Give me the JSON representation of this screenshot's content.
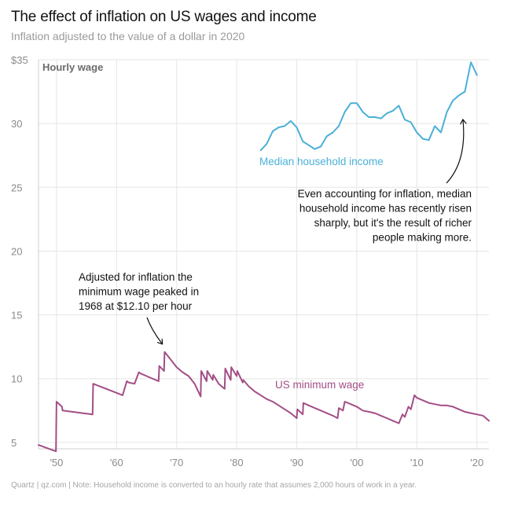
{
  "title": "The effect of inflation on US wages and income",
  "subtitle": "Inflation adjusted to the value of a dollar in 2020",
  "footer": "Quartz | qz.com | Note: Household income is converted to an hourly rate that assumes 2,000 hours of work in a year.",
  "colors": {
    "income": "#4ab0d8",
    "wage": "#a34e86",
    "grid": "#e6e6e6",
    "tick": "#8a8a8a"
  },
  "chart_data": {
    "type": "line",
    "ylabel": "Hourly wage",
    "ylim": [
      4.5,
      35
    ],
    "xlim": [
      1947,
      2022
    ],
    "y_ticks": [
      5,
      10,
      15,
      20,
      25,
      30,
      35
    ],
    "y_tick_labels": [
      "5",
      "10",
      "15",
      "20",
      "25",
      "30",
      "$35"
    ],
    "x_ticks": [
      1950,
      1960,
      1970,
      1980,
      1990,
      2000,
      2010,
      2020
    ],
    "x_tick_labels": [
      "'50",
      "'60",
      "'70",
      "'80",
      "'90",
      "'00",
      "'10",
      "'20"
    ],
    "series": [
      {
        "name": "Median household income",
        "label": "Median household income",
        "x": [
          1984,
          1985,
          1986,
          1987,
          1988,
          1989,
          1990,
          1991,
          1992,
          1993,
          1994,
          1995,
          1996,
          1997,
          1998,
          1999,
          2000,
          2001,
          2002,
          2003,
          2004,
          2005,
          2006,
          2007,
          2008,
          2009,
          2010,
          2011,
          2012,
          2013,
          2014,
          2015,
          2016,
          2017,
          2018,
          2019,
          2020
        ],
        "values": [
          27.9,
          28.4,
          29.4,
          29.7,
          29.8,
          30.2,
          29.7,
          28.6,
          28.3,
          28.0,
          28.2,
          29.0,
          29.3,
          29.8,
          30.9,
          31.6,
          31.6,
          30.9,
          30.5,
          30.5,
          30.4,
          30.8,
          31.0,
          31.4,
          30.3,
          30.1,
          29.3,
          28.8,
          28.7,
          29.8,
          29.3,
          30.9,
          31.8,
          32.2,
          32.5,
          34.8,
          33.8
        ]
      },
      {
        "name": "US minimum wage",
        "label": "US minimum wage",
        "x": [
          1947,
          1949.9,
          1950,
          1950.9,
          1951,
          1956,
          1956.1,
          1961,
          1961.7,
          1962,
          1963,
          1963.7,
          1964,
          1967,
          1967.1,
          1967.9,
          1968,
          1969,
          1970,
          1971,
          1972,
          1973,
          1974,
          1974.1,
          1975,
          1975.1,
          1976,
          1976.1,
          1977,
          1978,
          1978.1,
          1979,
          1979.1,
          1980,
          1980.1,
          1981,
          1981.1,
          1982,
          1983,
          1984,
          1985,
          1986,
          1987,
          1988,
          1989,
          1990,
          1990.1,
          1991,
          1991.1,
          1992,
          1993,
          1994,
          1995,
          1996,
          1996.8,
          1997,
          1997.7,
          1998,
          1999,
          2000,
          2001,
          2002,
          2003,
          2004,
          2005,
          2006,
          2007,
          2007.6,
          2008,
          2008.6,
          2009,
          2009.6,
          2010,
          2011,
          2012,
          2013,
          2014,
          2015,
          2016,
          2017,
          2018,
          2019,
          2020,
          2021,
          2022
        ],
        "values": [
          4.8,
          4.3,
          8.2,
          7.8,
          7.5,
          7.2,
          9.6,
          8.7,
          9.8,
          9.7,
          9.6,
          10.5,
          10.4,
          9.8,
          11.0,
          10.6,
          12.1,
          11.5,
          10.9,
          10.5,
          10.2,
          9.6,
          8.6,
          10.6,
          9.8,
          10.6,
          9.9,
          10.3,
          9.6,
          9.2,
          10.8,
          9.9,
          10.9,
          10.2,
          10.6,
          9.7,
          9.9,
          9.4,
          9.0,
          8.7,
          8.4,
          8.2,
          7.9,
          7.6,
          7.3,
          6.9,
          7.6,
          7.2,
          8.1,
          7.9,
          7.7,
          7.5,
          7.3,
          7.1,
          6.9,
          7.7,
          7.5,
          8.2,
          8.0,
          7.8,
          7.5,
          7.4,
          7.3,
          7.1,
          6.9,
          6.7,
          6.5,
          7.2,
          7.0,
          7.8,
          7.6,
          8.7,
          8.5,
          8.3,
          8.1,
          8.0,
          7.9,
          7.9,
          7.8,
          7.6,
          7.4,
          7.3,
          7.2,
          7.1,
          6.7
        ]
      }
    ],
    "annotations": [
      {
        "name": "min-wage-peak",
        "lines": [
          "Adjusted for inflation the",
          "minimum wage peaked in",
          "1968 at $12.10 per hour"
        ],
        "x": 1968,
        "y": 12.1
      },
      {
        "name": "income-rise",
        "lines": [
          "Even accounting for inflation, median",
          "household income has recently risen",
          "sharply, but it's the result of richer",
          "people making more."
        ],
        "x": 2018,
        "y": 30.3
      }
    ]
  }
}
